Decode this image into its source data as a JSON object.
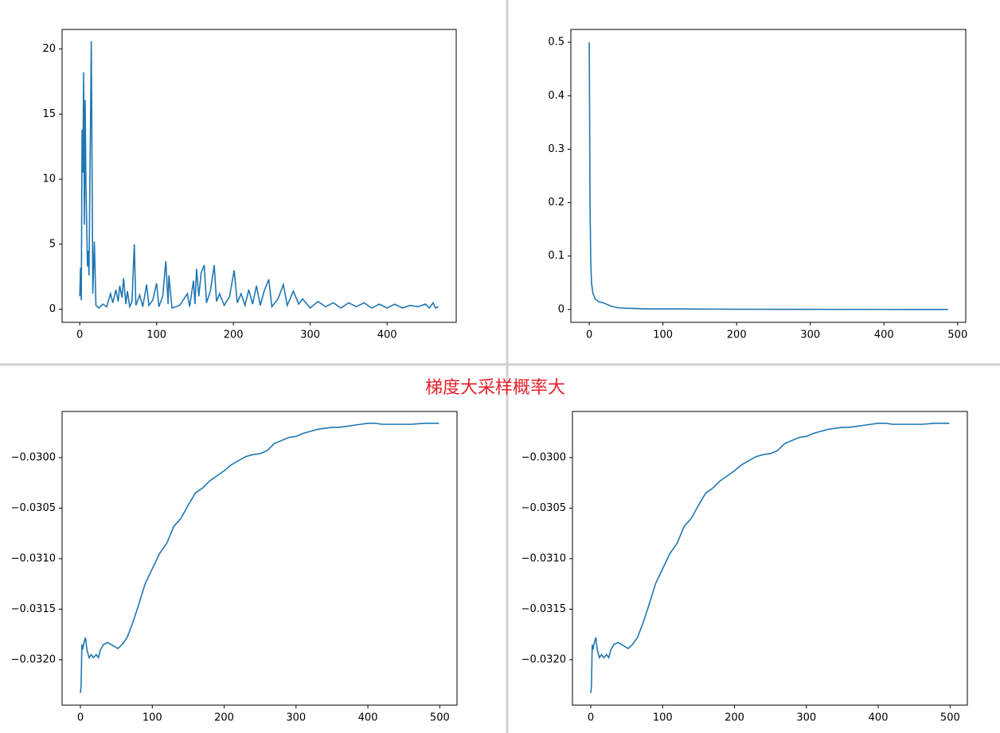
{
  "annotation": "梯度大采样概率大",
  "chart_data": [
    {
      "type": "line",
      "color": "#1f77b4",
      "x": [
        0,
        1,
        2,
        3,
        4,
        5,
        6,
        7,
        8,
        10,
        11,
        12,
        15,
        17,
        19,
        21,
        25,
        30,
        35,
        40,
        43,
        47,
        50,
        52,
        55,
        57,
        60,
        62,
        65,
        68,
        71,
        73,
        78,
        82,
        87,
        90,
        95,
        100,
        103,
        108,
        112,
        115,
        116,
        120,
        130,
        140,
        143,
        148,
        150,
        152,
        155,
        158,
        162,
        165,
        170,
        175,
        178,
        182,
        188,
        195,
        201,
        205,
        210,
        215,
        220,
        225,
        230,
        235,
        240,
        246,
        250,
        258,
        265,
        270,
        278,
        285,
        290,
        300,
        310,
        320,
        330,
        340,
        350,
        360,
        370,
        380,
        390,
        400,
        410,
        420,
        430,
        440,
        450,
        455,
        460,
        463,
        467
      ],
      "values": [
        1,
        3.2,
        0.7,
        13.8,
        10.5,
        18.2,
        6.5,
        16.1,
        9.8,
        3.3,
        4.5,
        2.6,
        20.6,
        1.2,
        5.2,
        0.3,
        0.1,
        0.4,
        0.2,
        1.2,
        0.5,
        1.5,
        0.6,
        1.8,
        0.9,
        2.4,
        0.4,
        1.4,
        0.2,
        0.6,
        5.0,
        0.3,
        1.1,
        0.2,
        1.9,
        0.3,
        0.7,
        2.0,
        0.2,
        1.0,
        3.7,
        0.4,
        2.6,
        0.1,
        0.3,
        1.2,
        0.2,
        2.2,
        0.4,
        3.1,
        1.0,
        2.8,
        3.4,
        0.5,
        1.4,
        3.4,
        0.6,
        1.2,
        0.3,
        1.0,
        3.0,
        0.5,
        1.2,
        0.3,
        1.5,
        0.4,
        1.8,
        0.3,
        1.4,
        2.3,
        0.2,
        0.8,
        1.9,
        0.3,
        1.4,
        0.4,
        0.8,
        0.1,
        0.6,
        0.2,
        0.5,
        0.1,
        0.5,
        0.2,
        0.5,
        0.1,
        0.4,
        0.1,
        0.4,
        0.1,
        0.3,
        0.2,
        0.4,
        0.1,
        0.5,
        0.1,
        0.2
      ],
      "xlim": [
        -23,
        490
      ],
      "ylim": [
        -1,
        21.5
      ],
      "xticks": [
        0,
        100,
        200,
        300,
        400
      ],
      "yticks": [
        0,
        5,
        10,
        15,
        20
      ]
    },
    {
      "type": "line",
      "color": "#1f77b4",
      "x": [
        0,
        1,
        2,
        3,
        5,
        8,
        12,
        20,
        30,
        40,
        60,
        80,
        120,
        200,
        300,
        400,
        487
      ],
      "values": [
        0.5,
        0.2,
        0.09,
        0.05,
        0.03,
        0.02,
        0.015,
        0.012,
        0.006,
        0.003,
        0.002,
        0.001,
        0.001,
        0.0005,
        0.0003,
        0.0002,
        0.0001
      ],
      "xlim": [
        -25,
        511
      ],
      "ylim": [
        -0.024,
        0.524
      ],
      "xticks": [
        0,
        100,
        200,
        300,
        400,
        500
      ],
      "yticks": [
        0.0,
        0.1,
        0.2,
        0.3,
        0.4,
        0.5
      ]
    },
    {
      "type": "line",
      "color": "#1f77b4",
      "x": [
        0,
        1,
        2,
        3,
        5,
        7,
        9,
        12,
        15,
        18,
        22,
        25,
        28,
        32,
        38,
        45,
        52,
        58,
        65,
        72,
        80,
        90,
        100,
        110,
        120,
        130,
        140,
        150,
        160,
        170,
        180,
        190,
        200,
        210,
        220,
        230,
        240,
        250,
        260,
        270,
        280,
        290,
        300,
        310,
        320,
        330,
        340,
        350,
        360,
        370,
        380,
        390,
        400,
        410,
        420,
        440,
        460,
        480,
        499
      ],
      "values": [
        -0.03233,
        -0.03225,
        -0.03185,
        -0.0319,
        -0.03183,
        -0.03178,
        -0.0319,
        -0.03198,
        -0.03195,
        -0.03198,
        -0.03195,
        -0.03198,
        -0.0319,
        -0.03185,
        -0.03183,
        -0.03186,
        -0.03189,
        -0.03185,
        -0.03178,
        -0.03165,
        -0.03148,
        -0.03125,
        -0.0311,
        -0.03095,
        -0.03085,
        -0.03068,
        -0.0306,
        -0.03047,
        -0.03035,
        -0.0303,
        -0.03023,
        -0.03018,
        -0.03013,
        -0.03007,
        -0.03003,
        -0.02999,
        -0.02997,
        -0.02996,
        -0.02993,
        -0.02986,
        -0.02983,
        -0.0298,
        -0.02979,
        -0.02976,
        -0.02974,
        -0.02972,
        -0.02971,
        -0.0297,
        -0.0297,
        -0.02969,
        -0.02968,
        -0.02967,
        -0.02966,
        -0.02966,
        -0.02967,
        -0.02967,
        -0.02967,
        -0.02966,
        -0.02966
      ],
      "xlim": [
        -25.5,
        524
      ],
      "ylim": [
        -0.03245,
        -0.029543
      ],
      "xticks": [
        0,
        100,
        200,
        300,
        400,
        500
      ],
      "yticks": [
        {
          "value": -0.03,
          "label": "−0.0300"
        },
        {
          "value": -0.0305,
          "label": "−0.0305"
        },
        {
          "value": -0.031,
          "label": "−0.0310"
        },
        {
          "value": -0.0315,
          "label": "−0.0315"
        },
        {
          "value": -0.032,
          "label": "−0.0320"
        }
      ]
    },
    {
      "type": "line",
      "color": "#1f77b4",
      "x": [
        0,
        1,
        2,
        3,
        5,
        7,
        9,
        12,
        15,
        18,
        22,
        25,
        28,
        32,
        38,
        45,
        52,
        58,
        65,
        72,
        80,
        90,
        100,
        110,
        120,
        130,
        140,
        150,
        160,
        170,
        180,
        190,
        200,
        210,
        220,
        230,
        240,
        250,
        260,
        270,
        280,
        290,
        300,
        310,
        320,
        330,
        340,
        350,
        360,
        370,
        380,
        390,
        400,
        410,
        420,
        440,
        460,
        480,
        499
      ],
      "values": [
        -0.03233,
        -0.03225,
        -0.03185,
        -0.0319,
        -0.03183,
        -0.03178,
        -0.0319,
        -0.03198,
        -0.03195,
        -0.03198,
        -0.03195,
        -0.03198,
        -0.0319,
        -0.03185,
        -0.03183,
        -0.03186,
        -0.03189,
        -0.03185,
        -0.03178,
        -0.03165,
        -0.03148,
        -0.03125,
        -0.0311,
        -0.03095,
        -0.03085,
        -0.03068,
        -0.0306,
        -0.03047,
        -0.03035,
        -0.0303,
        -0.03023,
        -0.03018,
        -0.03013,
        -0.03007,
        -0.03003,
        -0.02999,
        -0.02997,
        -0.02996,
        -0.02993,
        -0.02986,
        -0.02983,
        -0.0298,
        -0.02979,
        -0.02976,
        -0.02974,
        -0.02972,
        -0.02971,
        -0.0297,
        -0.0297,
        -0.02969,
        -0.02968,
        -0.02967,
        -0.02966,
        -0.02966,
        -0.02967,
        -0.02967,
        -0.02967,
        -0.02966,
        -0.02966
      ],
      "xlim": [
        -25.5,
        524
      ],
      "ylim": [
        -0.03245,
        -0.029543
      ],
      "xticks": [
        0,
        100,
        200,
        300,
        400,
        500
      ],
      "yticks": [
        {
          "value": -0.03,
          "label": "−0.0300"
        },
        {
          "value": -0.0305,
          "label": "−0.0305"
        },
        {
          "value": -0.031,
          "label": "−0.0310"
        },
        {
          "value": -0.0315,
          "label": "−0.0315"
        },
        {
          "value": -0.032,
          "label": "−0.0320"
        }
      ]
    }
  ]
}
